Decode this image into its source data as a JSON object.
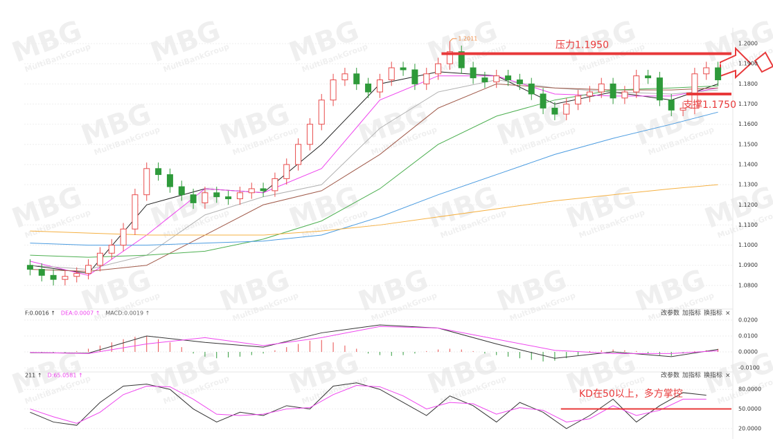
{
  "chart_data": {
    "type": "candlestick",
    "watermark": {
      "logo": "MBG",
      "sub": "MultiBankGroup"
    },
    "ylim": [
      1.0707,
      1.2062
    ],
    "yticks": [
      {
        "value": 1.2,
        "label": "1.2000"
      },
      {
        "value": 1.19,
        "label": "1.1900"
      },
      {
        "value": 1.18,
        "label": "1.1800"
      },
      {
        "value": 1.17,
        "label": "1.1700"
      },
      {
        "value": 1.16,
        "label": "1.1600"
      },
      {
        "value": 1.15,
        "label": "1.1500"
      },
      {
        "value": 1.14,
        "label": "1.1400"
      },
      {
        "value": 1.13,
        "label": "1.1300"
      },
      {
        "value": 1.12,
        "label": "1.1200"
      },
      {
        "value": 1.11,
        "label": "1.1100"
      },
      {
        "value": 1.1,
        "label": "1.1000"
      },
      {
        "value": 1.09,
        "label": "1.0900"
      },
      {
        "value": 1.08,
        "label": "1.0800"
      }
    ],
    "grid": true,
    "up_color": "#e84b4b",
    "down_color": "#2e9a3a",
    "open": [
      1.09,
      1.088,
      1.085,
      1.083,
      1.0845,
      1.086,
      1.09,
      1.096,
      1.1,
      1.108,
      1.125,
      1.138,
      1.135,
      1.129,
      1.125,
      1.121,
      1.126,
      1.124,
      1.123,
      1.126,
      1.128,
      1.127,
      1.133,
      1.14,
      1.15,
      1.16,
      1.172,
      1.182,
      1.185,
      1.18,
      1.176,
      1.182,
      1.188,
      1.187,
      1.18,
      1.185,
      1.19,
      1.196,
      1.188,
      1.183,
      1.181,
      1.184,
      1.182,
      1.18,
      1.175,
      1.168,
      1.165,
      1.17,
      1.174,
      1.176,
      1.18,
      1.173,
      1.176,
      1.184,
      1.183,
      1.172,
      1.167,
      1.168,
      1.185,
      1.188
    ],
    "high": [
      1.093,
      1.091,
      1.088,
      1.0875,
      1.089,
      1.093,
      1.099,
      1.103,
      1.111,
      1.128,
      1.141,
      1.141,
      1.138,
      1.132,
      1.128,
      1.129,
      1.129,
      1.127,
      1.129,
      1.131,
      1.131,
      1.136,
      1.143,
      1.153,
      1.163,
      1.175,
      1.185,
      1.188,
      1.188,
      1.183,
      1.185,
      1.191,
      1.191,
      1.19,
      1.188,
      1.193,
      1.2011,
      1.199,
      1.191,
      1.186,
      1.187,
      1.187,
      1.185,
      1.183,
      1.178,
      1.171,
      1.173,
      1.177,
      1.179,
      1.183,
      1.183,
      1.179,
      1.187,
      1.187,
      1.186,
      1.175,
      1.171,
      1.188,
      1.191,
      1.191
    ],
    "low": [
      1.085,
      1.082,
      1.08,
      1.08,
      1.0815,
      1.083,
      1.087,
      1.093,
      1.097,
      1.105,
      1.122,
      1.132,
      1.126,
      1.122,
      1.118,
      1.118,
      1.121,
      1.12,
      1.12,
      1.123,
      1.124,
      1.124,
      1.13,
      1.137,
      1.147,
      1.157,
      1.169,
      1.179,
      1.177,
      1.173,
      1.173,
      1.179,
      1.184,
      1.177,
      1.177,
      1.182,
      1.187,
      1.185,
      1.18,
      1.178,
      1.178,
      1.179,
      1.177,
      1.172,
      1.165,
      1.162,
      1.162,
      1.167,
      1.171,
      1.173,
      1.17,
      1.17,
      1.173,
      1.18,
      1.169,
      1.164,
      1.164,
      1.165,
      1.182,
      1.179
    ],
    "close": [
      1.088,
      1.085,
      1.083,
      1.0845,
      1.086,
      1.09,
      1.096,
      1.1,
      1.108,
      1.125,
      1.138,
      1.135,
      1.129,
      1.125,
      1.121,
      1.126,
      1.124,
      1.123,
      1.126,
      1.128,
      1.127,
      1.133,
      1.14,
      1.15,
      1.16,
      1.172,
      1.182,
      1.185,
      1.18,
      1.176,
      1.182,
      1.188,
      1.187,
      1.18,
      1.185,
      1.19,
      1.196,
      1.188,
      1.183,
      1.181,
      1.184,
      1.182,
      1.18,
      1.175,
      1.168,
      1.165,
      1.17,
      1.174,
      1.176,
      1.18,
      1.173,
      1.176,
      1.184,
      1.183,
      1.172,
      1.167,
      1.168,
      1.185,
      1.188,
      1.182
    ],
    "ma_x": [
      0,
      5,
      10,
      15,
      20,
      25,
      30,
      35,
      40,
      45,
      50,
      55,
      59
    ],
    "series": [
      {
        "color": "#222222",
        "values": [
          1.09,
          1.086,
          1.12,
          1.128,
          1.126,
          1.15,
          1.18,
          1.186,
          1.184,
          1.17,
          1.176,
          1.172,
          1.18
        ]
      },
      {
        "color": "#ee44ee",
        "values": [
          1.092,
          1.085,
          1.105,
          1.128,
          1.126,
          1.138,
          1.172,
          1.184,
          1.184,
          1.175,
          1.174,
          1.174,
          1.178
        ]
      },
      {
        "color": "#b0b0b0",
        "values": [
          1.09,
          1.088,
          1.095,
          1.115,
          1.124,
          1.13,
          1.158,
          1.176,
          1.182,
          1.178,
          1.176,
          1.175,
          1.177
        ]
      },
      {
        "color": "#a05a4a",
        "values": [
          1.088,
          1.087,
          1.09,
          1.105,
          1.12,
          1.127,
          1.145,
          1.168,
          1.18,
          1.178,
          1.177,
          1.177,
          1.178
        ]
      },
      {
        "color": "#4caf50",
        "values": [
          1.095,
          1.094,
          1.095,
          1.097,
          1.103,
          1.112,
          1.128,
          1.15,
          1.164,
          1.172,
          1.177,
          1.178,
          1.179
        ]
      },
      {
        "color": "#4a9be0",
        "values": [
          1.101,
          1.1,
          1.1,
          1.101,
          1.102,
          1.105,
          1.114,
          1.125,
          1.135,
          1.145,
          1.153,
          1.16,
          1.166
        ]
      },
      {
        "color": "#f5b041",
        "values": [
          1.107,
          1.106,
          1.105,
          1.105,
          1.105,
          1.107,
          1.11,
          1.114,
          1.118,
          1.122,
          1.125,
          1.128,
          1.13
        ]
      }
    ],
    "levels": [
      {
        "value": 1.195,
        "from": 36,
        "label": "压力1.1950",
        "color": "#e8393a"
      },
      {
        "value": 1.175,
        "from": 57,
        "label": "支撑1.1750",
        "color": "#e8393a"
      }
    ],
    "max_index": 36,
    "macd": {
      "labels": [
        "F:0.0016 ↑",
        "DEA:0.0007 ↑",
        "MACD:0.0019 ↑"
      ],
      "label_colors": [
        "#333333",
        "#ee44ee",
        "#666666"
      ],
      "buttons": [
        "改参数",
        "加指标",
        "换指标",
        "×"
      ],
      "ylim": [
        -0.0113,
        0.0235
      ],
      "yticks": [
        {
          "value": 0.02,
          "label": "0.0200"
        },
        {
          "value": 0.01,
          "label": "0.0100"
        },
        {
          "value": 0,
          "label": "0.0000"
        },
        {
          "value": -0.01,
          "label": "-0.0100"
        }
      ],
      "bars": [
        0,
        -0.0005,
        -0.0008,
        -0.0005,
        0.0005,
        0.002,
        0.004,
        0.006,
        0.008,
        0.0095,
        0.01,
        0.008,
        0.006,
        0.003,
        -0.001,
        -0.003,
        -0.004,
        -0.0035,
        -0.003,
        -0.002,
        -0.001,
        0.001,
        0.003,
        0.005,
        0.007,
        0.0075,
        0.006,
        0.004,
        0.002,
        -0.001,
        -0.002,
        -0.0025,
        -0.002,
        -0.001,
        0.0005,
        0.0015,
        0.002,
        0.0015,
        0.0005,
        -0.001,
        -0.002,
        -0.003,
        -0.004,
        -0.005,
        -0.006,
        -0.0055,
        -0.004,
        -0.002,
        0.0005,
        0.001,
        0.0015,
        0.001,
        0.0005,
        -0.001,
        -0.002,
        -0.0025,
        -0.001,
        0.0005,
        0.001,
        0.0019
      ],
      "dif": [
        -0.0005,
        -0.0008,
        0.01,
        0.006,
        0.003,
        0.012,
        0.017,
        0.015,
        0.005,
        -0.004,
        0.0,
        -0.003,
        0.0016
      ],
      "dea": [
        -0.0003,
        -0.001,
        0.005,
        0.009,
        0.004,
        0.009,
        0.016,
        0.015,
        0.008,
        0.001,
        -0.001,
        -0.001,
        0.0007
      ]
    },
    "kd": {
      "labels": [
        "211 ↑",
        "D:65.0581 ↑"
      ],
      "label_colors": [
        "#333333",
        "#ee44ee"
      ],
      "buttons": [
        "改参数",
        "加指标",
        "换指标",
        "×"
      ],
      "ylim": [
        9.3,
        99.3
      ],
      "yticks": [
        {
          "value": 80,
          "label": "80.0000"
        },
        {
          "value": 50,
          "label": "50.0000"
        },
        {
          "value": 20,
          "label": "20.0000"
        }
      ],
      "x": [
        0,
        2,
        4,
        6,
        8,
        10,
        12,
        14,
        16,
        18,
        20,
        22,
        24,
        26,
        28,
        30,
        32,
        34,
        36,
        38,
        40,
        42,
        44,
        46,
        48,
        50,
        52,
        54,
        56,
        58
      ],
      "k": [
        45,
        30,
        25,
        60,
        85,
        88,
        80,
        50,
        30,
        45,
        40,
        55,
        50,
        85,
        90,
        80,
        60,
        40,
        70,
        55,
        30,
        60,
        45,
        20,
        40,
        65,
        30,
        55,
        75,
        71
      ],
      "d": [
        50,
        38,
        28,
        45,
        72,
        85,
        84,
        65,
        42,
        40,
        42,
        50,
        52,
        72,
        86,
        84,
        70,
        50,
        60,
        58,
        42,
        52,
        48,
        30,
        35,
        55,
        40,
        48,
        65,
        65.0581
      ],
      "level": {
        "value": 50,
        "from": 46,
        "label": "KD在50以上，多方掌控",
        "color": "#e8393a"
      }
    }
  }
}
